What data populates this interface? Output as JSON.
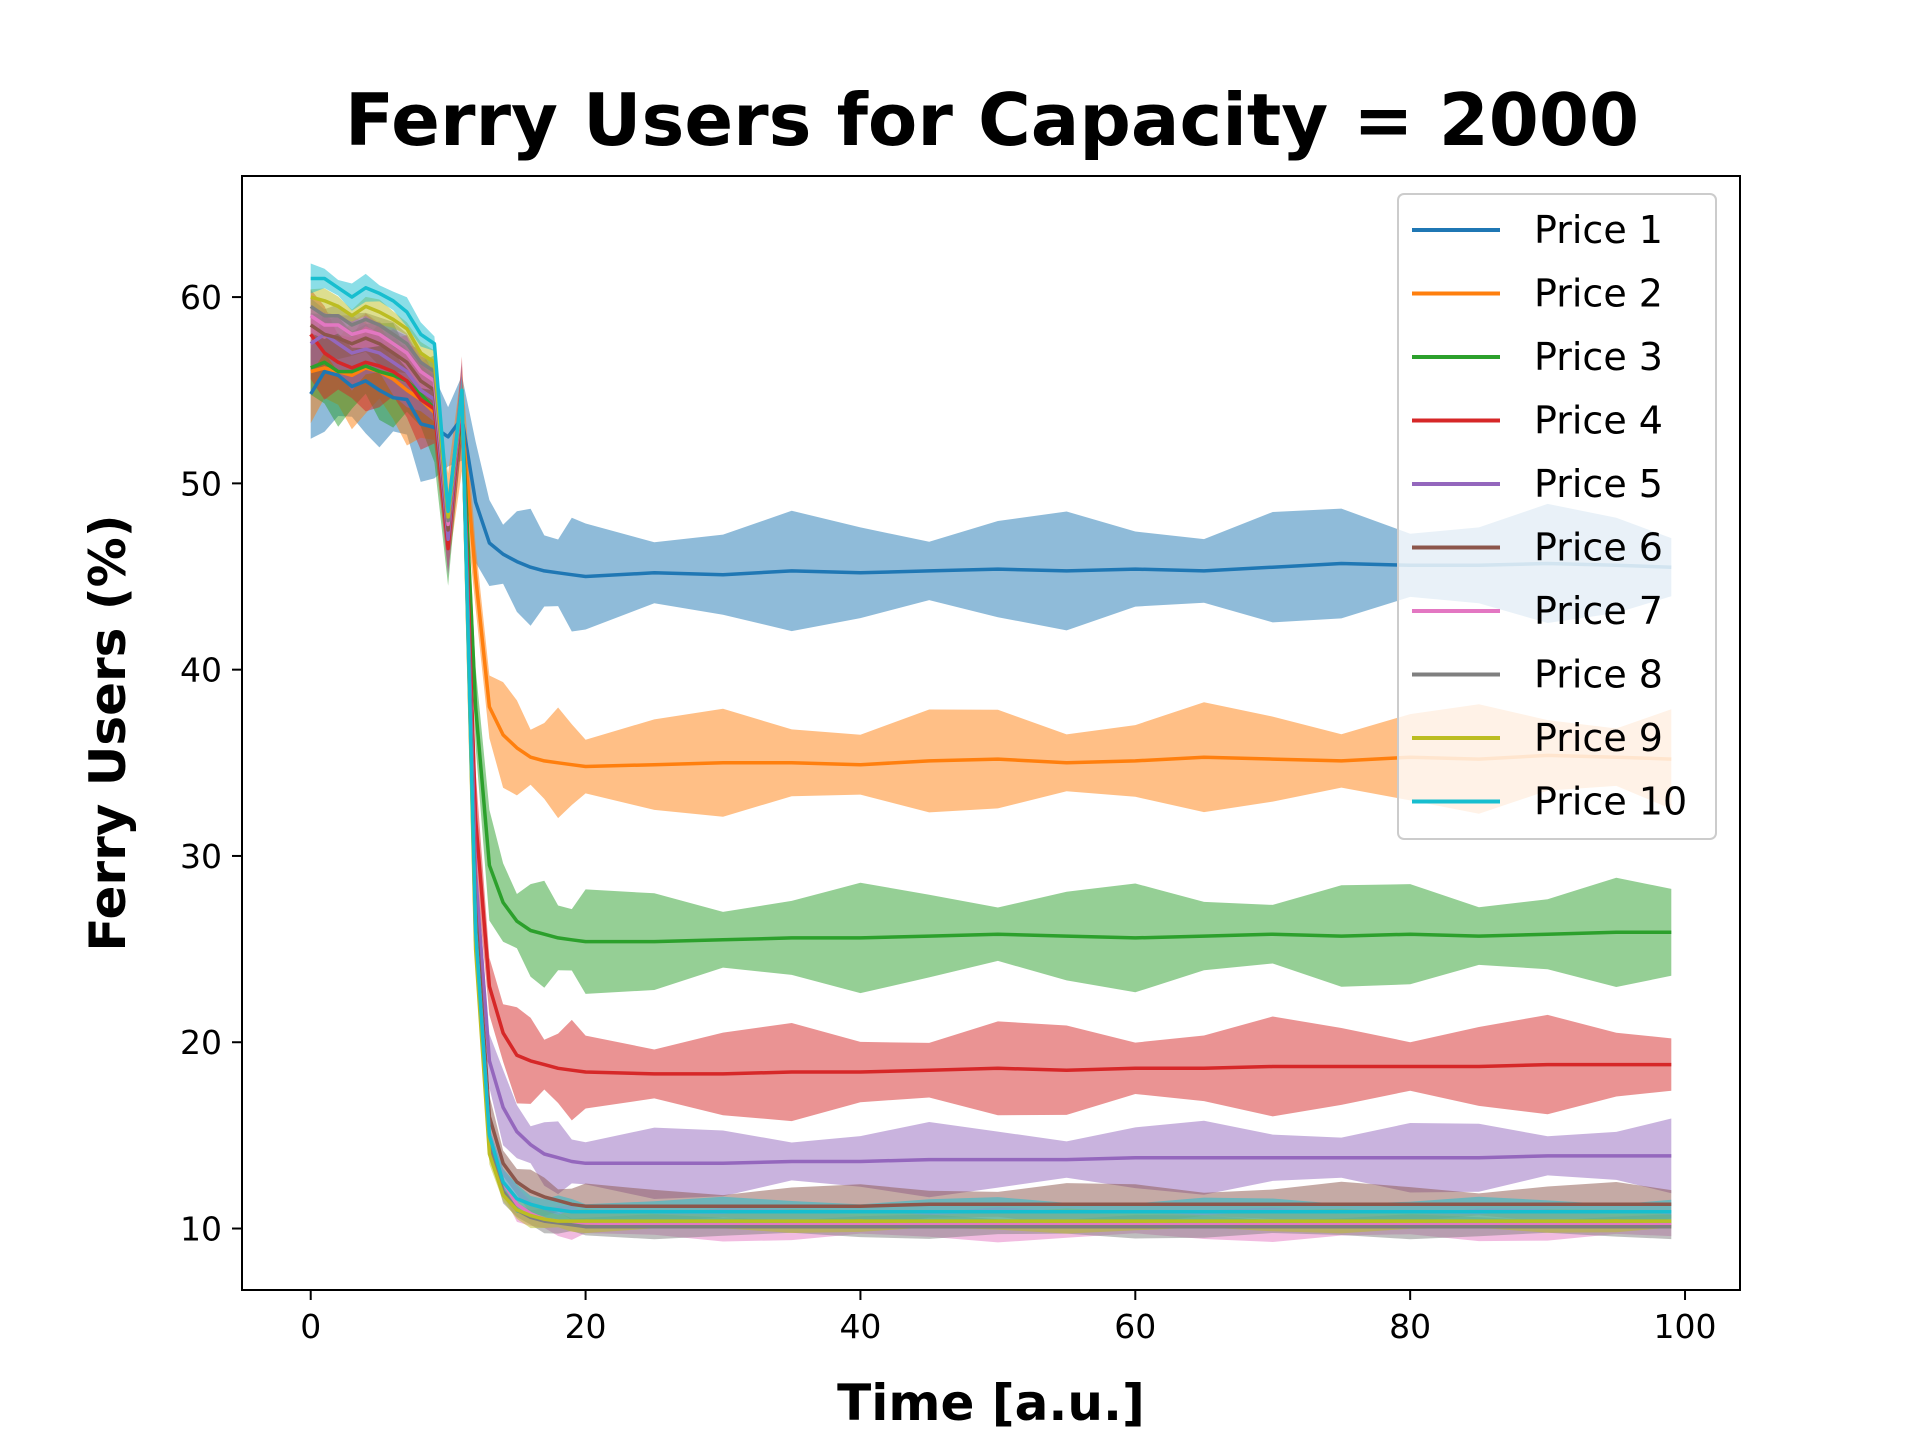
{
  "chart_data": {
    "type": "line",
    "title": "Ferry Users for Capacity = 2000",
    "xlabel": "Time [a.u.]",
    "ylabel": "Ferry Users (%)",
    "xlim": [
      -5,
      104
    ],
    "ylim": [
      6.7,
      66.5
    ],
    "xticks": [
      0,
      20,
      40,
      60,
      80,
      100
    ],
    "yticks": [
      10,
      20,
      30,
      40,
      50,
      60
    ],
    "grid": false,
    "legend_position": "top-right",
    "x": [
      0,
      1,
      2,
      3,
      4,
      5,
      6,
      7,
      8,
      9,
      10,
      11,
      12,
      13,
      14,
      15,
      16,
      17,
      18,
      19,
      20,
      25,
      30,
      35,
      40,
      45,
      50,
      55,
      60,
      65,
      70,
      75,
      80,
      85,
      90,
      95,
      99
    ],
    "series": [
      {
        "name": "Price 1",
        "color": "#1f77b4",
        "band": 2.4,
        "values": [
          54.8,
          56.0,
          55.8,
          55.2,
          55.5,
          55.0,
          54.6,
          54.5,
          53.2,
          53.0,
          52.5,
          53.5,
          49.0,
          46.8,
          46.2,
          45.8,
          45.5,
          45.3,
          45.2,
          45.1,
          45.0,
          45.2,
          45.1,
          45.3,
          45.2,
          45.3,
          45.4,
          45.3,
          45.4,
          45.3,
          45.5,
          45.7,
          45.6,
          45.6,
          45.7,
          45.6,
          45.5
        ]
      },
      {
        "name": "Price 2",
        "color": "#ff7f0e",
        "band": 2.2,
        "values": [
          56.0,
          56.2,
          56.0,
          55.8,
          56.2,
          56.0,
          55.6,
          55.0,
          54.5,
          53.8,
          48.0,
          53.5,
          45.0,
          38.0,
          36.5,
          35.8,
          35.3,
          35.1,
          35.0,
          34.9,
          34.8,
          34.9,
          35.0,
          35.0,
          34.9,
          35.1,
          35.2,
          35.0,
          35.1,
          35.3,
          35.2,
          35.1,
          35.3,
          35.2,
          35.4,
          35.3,
          35.2
        ]
      },
      {
        "name": "Price 3",
        "color": "#2ca02c",
        "band": 2.2,
        "values": [
          56.2,
          56.5,
          56.0,
          56.0,
          56.3,
          56.0,
          55.8,
          55.5,
          54.8,
          54.0,
          47.0,
          54.0,
          38.0,
          29.5,
          27.5,
          26.5,
          26.0,
          25.8,
          25.6,
          25.5,
          25.4,
          25.4,
          25.5,
          25.6,
          25.6,
          25.7,
          25.8,
          25.7,
          25.6,
          25.7,
          25.8,
          25.7,
          25.8,
          25.7,
          25.8,
          25.9,
          25.9
        ]
      },
      {
        "name": "Price 4",
        "color": "#d62728",
        "band": 2.0,
        "values": [
          58.0,
          57.0,
          56.5,
          56.2,
          56.5,
          56.3,
          56.0,
          55.5,
          54.5,
          54.0,
          46.5,
          54.5,
          32.0,
          23.0,
          20.5,
          19.3,
          19.0,
          18.8,
          18.6,
          18.5,
          18.4,
          18.3,
          18.3,
          18.4,
          18.4,
          18.5,
          18.6,
          18.5,
          18.6,
          18.6,
          18.7,
          18.7,
          18.7,
          18.7,
          18.8,
          18.8,
          18.8
        ]
      },
      {
        "name": "Price 5",
        "color": "#9467bd",
        "band": 1.5,
        "values": [
          57.5,
          58.0,
          57.5,
          57.0,
          57.2,
          57.0,
          56.5,
          56.0,
          55.0,
          54.5,
          47.0,
          54.8,
          29.0,
          19.0,
          16.5,
          15.2,
          14.5,
          14.0,
          13.8,
          13.6,
          13.5,
          13.5,
          13.5,
          13.6,
          13.6,
          13.7,
          13.7,
          13.7,
          13.8,
          13.8,
          13.8,
          13.8,
          13.8,
          13.8,
          13.9,
          13.9,
          13.9
        ]
      },
      {
        "name": "Price 6",
        "color": "#8c564b",
        "band": 0.9,
        "values": [
          58.5,
          58.0,
          57.8,
          57.5,
          57.8,
          57.5,
          57.0,
          56.5,
          55.5,
          55.0,
          47.5,
          55.0,
          27.0,
          16.0,
          13.5,
          12.5,
          12.0,
          11.7,
          11.5,
          11.3,
          11.2,
          11.2,
          11.2,
          11.2,
          11.2,
          11.3,
          11.3,
          11.3,
          11.3,
          11.3,
          11.3,
          11.3,
          11.3,
          11.3,
          11.3,
          11.3,
          11.3
        ]
      },
      {
        "name": "Price 7",
        "color": "#e377c2",
        "band": 0.7,
        "values": [
          59.0,
          58.5,
          58.5,
          58.0,
          58.2,
          58.0,
          57.5,
          57.0,
          56.0,
          55.5,
          47.8,
          55.0,
          26.0,
          15.0,
          12.5,
          11.3,
          10.8,
          10.5,
          10.4,
          10.3,
          10.3,
          10.2,
          10.2,
          10.2,
          10.2,
          10.2,
          10.2,
          10.2,
          10.2,
          10.2,
          10.2,
          10.2,
          10.2,
          10.2,
          10.2,
          10.2,
          10.2
        ]
      },
      {
        "name": "Price 8",
        "color": "#7f7f7f",
        "band": 0.5,
        "values": [
          59.5,
          59.0,
          59.0,
          58.5,
          58.8,
          58.5,
          58.0,
          57.5,
          56.5,
          56.0,
          48.0,
          55.0,
          25.5,
          14.5,
          12.0,
          11.0,
          10.6,
          10.4,
          10.3,
          10.2,
          10.1,
          10.1,
          10.1,
          10.1,
          10.1,
          10.1,
          10.1,
          10.1,
          10.1,
          10.1,
          10.1,
          10.1,
          10.1,
          10.1,
          10.1,
          10.1,
          10.1
        ]
      },
      {
        "name": "Price 9",
        "color": "#bcbd22",
        "band": 0.5,
        "values": [
          60.0,
          59.8,
          59.5,
          59.0,
          59.5,
          59.2,
          58.8,
          58.3,
          57.0,
          56.5,
          48.2,
          55.0,
          25.0,
          14.0,
          11.8,
          11.0,
          10.7,
          10.5,
          10.4,
          10.4,
          10.4,
          10.4,
          10.4,
          10.4,
          10.4,
          10.4,
          10.4,
          10.4,
          10.4,
          10.4,
          10.4,
          10.4,
          10.4,
          10.4,
          10.4,
          10.4,
          10.4
        ]
      },
      {
        "name": "Price 10",
        "color": "#17becf",
        "band": 0.6,
        "values": [
          61.0,
          61.0,
          60.5,
          60.0,
          60.5,
          60.2,
          59.8,
          59.2,
          58.0,
          57.5,
          48.5,
          55.0,
          26.0,
          15.0,
          12.5,
          11.6,
          11.3,
          11.1,
          11.0,
          10.9,
          10.9,
          10.9,
          10.9,
          10.9,
          10.9,
          10.9,
          10.9,
          10.9,
          10.9,
          10.9,
          10.9,
          10.9,
          10.9,
          10.9,
          10.9,
          10.9,
          10.9
        ]
      }
    ]
  }
}
